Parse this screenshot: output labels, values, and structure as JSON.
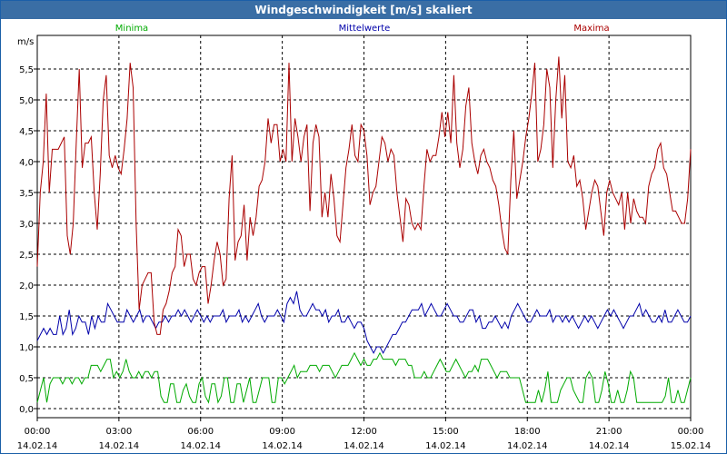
{
  "window": {
    "title": "Windgeschwindigkeit [m/s] skaliert"
  },
  "chart_data": {
    "type": "line",
    "title": "Windgeschwindigkeit [m/s] skaliert",
    "ylabel": "m/s",
    "ylim": [
      0,
      6
    ],
    "xlim_hours": [
      0,
      24
    ],
    "y_ticks": [
      "0,0",
      "0,5",
      "1,0",
      "1,5",
      "2,0",
      "2,5",
      "3,0",
      "3,5",
      "4,0",
      "4,5",
      "5,0",
      "5,5"
    ],
    "x_ticks": [
      {
        "time": "00:00",
        "date": "14.02.14"
      },
      {
        "time": "03:00",
        "date": "14.02.14"
      },
      {
        "time": "06:00",
        "date": "14.02.14"
      },
      {
        "time": "09:00",
        "date": "14.02.14"
      },
      {
        "time": "12:00",
        "date": "14.02.14"
      },
      {
        "time": "15:00",
        "date": "14.02.14"
      },
      {
        "time": "18:00",
        "date": "14.02.14"
      },
      {
        "time": "21:00",
        "date": "14.02.14"
      },
      {
        "time": "00:00",
        "date": "15.02.14"
      }
    ],
    "series": [
      {
        "name": "Minima",
        "color": "#00aa00",
        "values": [
          0.1,
          0.3,
          0.5,
          0.1,
          0.4,
          0.5,
          0.5,
          0.5,
          0.4,
          0.5,
          0.5,
          0.4,
          0.5,
          0.5,
          0.4,
          0.5,
          0.5,
          0.7,
          0.7,
          0.7,
          0.6,
          0.7,
          0.8,
          0.8,
          0.5,
          0.6,
          0.5,
          0.6,
          0.8,
          0.6,
          0.5,
          0.5,
          0.6,
          0.5,
          0.6,
          0.6,
          0.5,
          0.6,
          0.6,
          0.2,
          0.1,
          0.1,
          0.4,
          0.4,
          0.1,
          0.1,
          0.3,
          0.4,
          0.2,
          0.1,
          0.1,
          0.4,
          0.5,
          0.2,
          0.1,
          0.4,
          0.4,
          0.1,
          0.2,
          0.5,
          0.5,
          0.1,
          0.1,
          0.4,
          0.4,
          0.1,
          0.3,
          0.5,
          0.1,
          0.1,
          0.3,
          0.5,
          0.5,
          0.5,
          0.1,
          0.1,
          0.5,
          0.5,
          0.4,
          0.5,
          0.6,
          0.7,
          0.5,
          0.6,
          0.6,
          0.6,
          0.7,
          0.7,
          0.7,
          0.6,
          0.7,
          0.7,
          0.7,
          0.6,
          0.5,
          0.6,
          0.7,
          0.7,
          0.7,
          0.8,
          0.9,
          0.8,
          0.7,
          0.8,
          0.7,
          0.7,
          0.8,
          0.8,
          0.9,
          0.8,
          0.8,
          0.8,
          0.8,
          0.7,
          0.8,
          0.8,
          0.8,
          0.7,
          0.7,
          0.5,
          0.5,
          0.5,
          0.6,
          0.5,
          0.5,
          0.6,
          0.7,
          0.8,
          0.7,
          0.6,
          0.6,
          0.7,
          0.8,
          0.7,
          0.6,
          0.5,
          0.6,
          0.6,
          0.7,
          0.6,
          0.8,
          0.8,
          0.8,
          0.7,
          0.6,
          0.5,
          0.6,
          0.6,
          0.6,
          0.5,
          0.5,
          0.5,
          0.5,
          0.3,
          0.1,
          0.1,
          0.1,
          0.1,
          0.3,
          0.1,
          0.3,
          0.6,
          0.1,
          0.1,
          0.1,
          0.3,
          0.4,
          0.5,
          0.5,
          0.3,
          0.2,
          0.1,
          0.1,
          0.5,
          0.6,
          0.5,
          0.1,
          0.1,
          0.3,
          0.6,
          0.4,
          0.1,
          0.1,
          0.3,
          0.1,
          0.1,
          0.3,
          0.6,
          0.5,
          0.1,
          0.1,
          0.1,
          0.1,
          0.1,
          0.1,
          0.1,
          0.1,
          0.1,
          0.2,
          0.5,
          0.1,
          0.1,
          0.3,
          0.1,
          0.1,
          0.3,
          0.5
        ]
      },
      {
        "name": "Mittelwerte",
        "color": "#0000aa",
        "values": [
          1.1,
          1.2,
          1.3,
          1.2,
          1.3,
          1.2,
          1.2,
          1.5,
          1.2,
          1.3,
          1.6,
          1.2,
          1.3,
          1.5,
          1.4,
          1.4,
          1.2,
          1.5,
          1.3,
          1.5,
          1.4,
          1.4,
          1.7,
          1.6,
          1.5,
          1.4,
          1.4,
          1.4,
          1.6,
          1.5,
          1.4,
          1.5,
          1.6,
          1.4,
          1.5,
          1.5,
          1.4,
          1.3,
          1.4,
          1.4,
          1.5,
          1.4,
          1.5,
          1.5,
          1.6,
          1.5,
          1.6,
          1.5,
          1.4,
          1.5,
          1.6,
          1.5,
          1.4,
          1.5,
          1.4,
          1.5,
          1.5,
          1.5,
          1.6,
          1.4,
          1.5,
          1.5,
          1.5,
          1.6,
          1.4,
          1.5,
          1.4,
          1.5,
          1.6,
          1.7,
          1.5,
          1.4,
          1.5,
          1.5,
          1.5,
          1.6,
          1.5,
          1.4,
          1.7,
          1.8,
          1.7,
          1.9,
          1.6,
          1.5,
          1.5,
          1.6,
          1.7,
          1.6,
          1.6,
          1.5,
          1.6,
          1.4,
          1.5,
          1.5,
          1.6,
          1.4,
          1.4,
          1.5,
          1.4,
          1.3,
          1.4,
          1.4,
          1.3,
          1.1,
          1.0,
          0.9,
          1.0,
          1.0,
          0.9,
          1.0,
          1.1,
          1.2,
          1.2,
          1.3,
          1.4,
          1.4,
          1.5,
          1.6,
          1.6,
          1.6,
          1.7,
          1.5,
          1.6,
          1.7,
          1.6,
          1.5,
          1.5,
          1.6,
          1.7,
          1.6,
          1.5,
          1.5,
          1.4,
          1.4,
          1.5,
          1.6,
          1.6,
          1.4,
          1.5,
          1.3,
          1.3,
          1.4,
          1.4,
          1.5,
          1.4,
          1.3,
          1.4,
          1.3,
          1.5,
          1.6,
          1.7,
          1.6,
          1.5,
          1.4,
          1.4,
          1.5,
          1.6,
          1.5,
          1.5,
          1.5,
          1.6,
          1.4,
          1.5,
          1.5,
          1.4,
          1.5,
          1.4,
          1.5,
          1.4,
          1.3,
          1.4,
          1.5,
          1.4,
          1.5,
          1.4,
          1.3,
          1.4,
          1.5,
          1.6,
          1.5,
          1.6,
          1.5,
          1.4,
          1.3,
          1.4,
          1.5,
          1.5,
          1.6,
          1.7,
          1.5,
          1.6,
          1.5,
          1.4,
          1.4,
          1.5,
          1.4,
          1.6,
          1.4,
          1.4,
          1.5,
          1.6,
          1.5,
          1.4,
          1.4,
          1.5
        ]
      },
      {
        "name": "Maxima",
        "color": "#aa0000",
        "values": [
          2.3,
          3.5,
          4.0,
          5.1,
          3.5,
          4.2,
          4.2,
          4.2,
          4.3,
          4.4,
          2.8,
          2.5,
          3.0,
          4.3,
          5.5,
          3.9,
          4.3,
          4.3,
          4.4,
          3.5,
          2.9,
          3.8,
          5.0,
          5.4,
          4.1,
          3.9,
          4.1,
          3.9,
          3.8,
          4.2,
          4.7,
          5.6,
          5.2,
          3.0,
          1.6,
          2.0,
          2.1,
          2.2,
          2.2,
          1.4,
          1.2,
          1.2,
          1.6,
          1.7,
          1.9,
          2.2,
          2.3,
          2.9,
          2.8,
          2.3,
          2.5,
          2.5,
          2.1,
          2.0,
          2.2,
          2.3,
          2.3,
          1.7,
          2.0,
          2.4,
          2.7,
          2.5,
          2.0,
          2.1,
          3.4,
          4.1,
          2.4,
          2.7,
          2.8,
          3.3,
          2.4,
          3.1,
          2.8,
          3.1,
          3.6,
          3.7,
          4.0,
          4.7,
          4.3,
          4.6,
          4.6,
          4.0,
          4.2,
          4.0,
          5.6,
          4.0,
          4.7,
          4.4,
          4.0,
          4.4,
          4.6,
          3.2,
          4.3,
          4.6,
          4.4,
          3.1,
          3.5,
          3.1,
          3.8,
          3.4,
          2.8,
          2.7,
          3.3,
          3.9,
          4.2,
          4.6,
          4.1,
          4.0,
          4.6,
          4.5,
          4.1,
          3.3,
          3.5,
          3.6,
          4.0,
          4.4,
          4.3,
          4.0,
          4.2,
          4.1,
          3.5,
          3.1,
          2.7,
          3.4,
          3.3,
          3.0,
          2.9,
          3.0,
          2.9,
          3.6,
          4.2,
          4.0,
          4.1,
          4.1,
          4.4,
          4.8,
          4.4,
          4.8,
          4.3,
          5.4,
          4.3,
          3.9,
          4.2,
          4.9,
          5.2,
          4.3,
          4.0,
          3.8,
          4.1,
          4.2,
          4.0,
          3.9,
          3.7,
          3.6,
          3.3,
          2.9,
          2.6,
          2.5,
          3.7,
          4.5,
          3.4,
          3.7,
          4.0,
          4.4,
          4.7,
          5.1,
          5.6,
          4.0,
          4.2,
          4.6,
          5.5,
          5.2,
          3.9,
          5.0,
          5.7,
          4.7,
          5.4,
          4.0,
          3.9,
          4.1,
          3.6,
          3.7,
          3.4,
          2.9,
          3.2,
          3.5,
          3.7,
          3.6,
          3.2,
          2.8,
          3.5,
          3.7,
          3.5,
          3.4,
          3.3,
          3.5,
          2.9,
          3.5,
          3.0,
          3.4,
          3.2,
          3.1,
          3.1,
          3.0,
          3.6,
          3.8,
          3.9,
          4.2,
          4.3,
          3.9,
          3.8,
          3.5,
          3.2,
          3.2,
          3.1,
          3.0,
          3.0,
          3.4,
          4.2
        ]
      }
    ]
  }
}
